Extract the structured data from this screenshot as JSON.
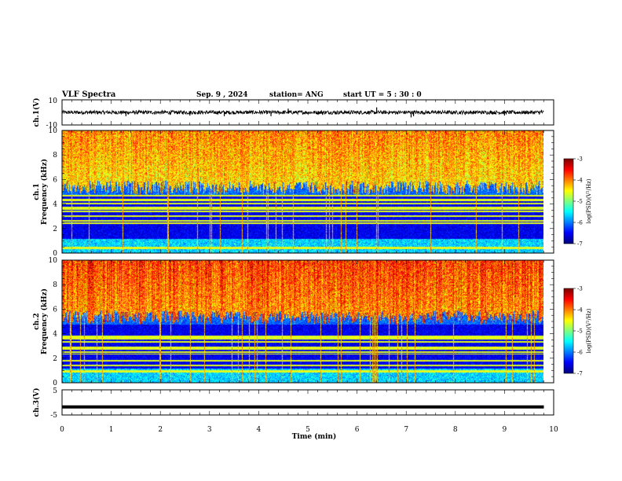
{
  "header": {
    "title": "VLF Spectra",
    "date": "Sep. 9  , 2024",
    "station": "station= ANG",
    "start": "start  UT =   5  : 30 : 0"
  },
  "chart_data": [
    {
      "type": "line",
      "panel": "ch1-waveform",
      "ylabel": "ch.1(V)",
      "ylim": [
        -10,
        10
      ],
      "ytick_labels": [
        "10",
        "-10"
      ],
      "xlim": [
        0,
        10
      ],
      "baseline": 0,
      "amplitude": 1.5,
      "spikes": [
        {
          "x": 1.3,
          "y": -3
        },
        {
          "x": 2.2,
          "y": -2
        },
        {
          "x": 2.6,
          "y": -2.5
        },
        {
          "x": 3.3,
          "y": -3
        },
        {
          "x": 4.25,
          "y": -3
        },
        {
          "x": 4.6,
          "y": 3
        },
        {
          "x": 5.3,
          "y": -2
        },
        {
          "x": 6.4,
          "y": 4
        },
        {
          "x": 7.1,
          "y": -4
        },
        {
          "x": 7.15,
          "y": -3
        },
        {
          "x": 8.2,
          "y": -2
        },
        {
          "x": 9.0,
          "y": -2.5
        },
        {
          "x": 9.75,
          "y": 2
        }
      ]
    },
    {
      "type": "heatmap",
      "panel": "ch1-spectrogram",
      "ylabel_line1": "ch.1",
      "ylabel_line2": "Frequency  (kHz)",
      "ylim": [
        0,
        10
      ],
      "ytick_labels": [
        "0",
        "2",
        "4",
        "6",
        "8",
        "10"
      ],
      "xlim": [
        0,
        10
      ],
      "colorbar": {
        "label": "log(PSD)(V²/Hz)",
        "range": [
          -7,
          -3
        ],
        "tick_labels": [
          "-3",
          "-4",
          "-5",
          "-6",
          "-7"
        ]
      }
    },
    {
      "type": "heatmap",
      "panel": "ch2-spectrogram",
      "ylabel_line1": "ch.2",
      "ylabel_line2": "Frequency  (kHz)",
      "ylim": [
        0,
        10
      ],
      "ytick_labels": [
        "0",
        "2",
        "4",
        "6",
        "8",
        "10"
      ],
      "xlim": [
        0,
        10
      ],
      "colorbar": {
        "label": "log(PSD)(V²/Hz)",
        "range": [
          -7,
          -3
        ],
        "tick_labels": [
          "-3",
          "-4",
          "-5",
          "-6",
          "-7"
        ]
      }
    },
    {
      "type": "line",
      "panel": "ch3-waveform",
      "ylabel": "ch.3(V)",
      "ylim": [
        -5,
        5
      ],
      "ytick_labels": [
        "5",
        "-5"
      ],
      "xlim": [
        0,
        10
      ],
      "value": -1.8
    }
  ],
  "xaxis": {
    "label": "Time  (min)",
    "tick_labels": [
      "0",
      "1",
      "2",
      "3",
      "4",
      "5",
      "6",
      "7",
      "8",
      "9",
      "10"
    ]
  },
  "colors": {
    "low": "#000050",
    "mid_low": "#1e3cb4",
    "mid": "#00c8ff",
    "high": "#00ff64",
    "top": "#ff0000"
  }
}
